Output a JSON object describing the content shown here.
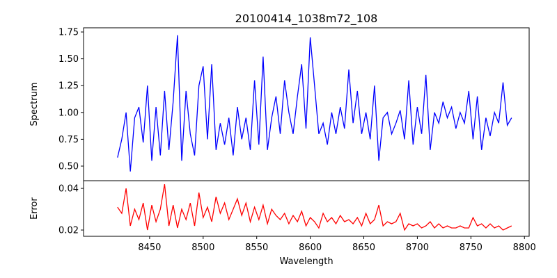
{
  "chart_data": {
    "type": "line",
    "title": "20100414_1038m72_108",
    "xlabel": "Wavelength",
    "xlim": [
      8388.3,
      8804.4
    ],
    "xticks": [
      8450,
      8500,
      8550,
      8600,
      8650,
      8700,
      8750,
      8800
    ],
    "x_start": 8420,
    "x_step": 4,
    "panels": [
      {
        "name": "spectrum",
        "ylabel": "Spectrum",
        "ylim": [
          0.364,
          1.789
        ],
        "yticks": [
          "0.50",
          "0.75",
          "1.00",
          "1.25",
          "1.50",
          "1.75"
        ],
        "color": "#0000ff",
        "values": [
          0.58,
          0.75,
          1.0,
          0.45,
          0.95,
          1.05,
          0.72,
          1.25,
          0.55,
          1.05,
          0.6,
          1.2,
          0.65,
          1.1,
          1.72,
          0.55,
          1.2,
          0.8,
          0.6,
          1.25,
          1.43,
          0.75,
          1.45,
          0.65,
          0.9,
          0.7,
          0.95,
          0.6,
          1.05,
          0.75,
          0.95,
          0.65,
          1.3,
          0.7,
          1.52,
          0.65,
          0.95,
          1.15,
          0.8,
          1.3,
          1.0,
          0.8,
          1.15,
          1.45,
          0.85,
          1.7,
          1.25,
          0.8,
          0.9,
          0.7,
          1.0,
          0.8,
          1.05,
          0.85,
          1.4,
          0.9,
          1.2,
          0.8,
          1.0,
          0.75,
          1.25,
          0.55,
          0.95,
          1.0,
          0.8,
          0.9,
          1.02,
          0.75,
          1.3,
          0.7,
          1.05,
          0.8,
          1.35,
          0.65,
          1.0,
          0.9,
          1.1,
          0.95,
          1.05,
          0.85,
          1.0,
          0.9,
          1.2,
          0.75,
          1.15,
          0.65,
          0.95,
          0.78,
          1.0,
          0.9,
          1.28,
          0.88,
          0.95
        ]
      },
      {
        "name": "error",
        "ylabel": "Error",
        "ylim": [
          0.017,
          0.0437
        ],
        "yticks": [
          "0.02",
          "0.04"
        ],
        "color": "#ff0000",
        "values": [
          0.031,
          0.028,
          0.04,
          0.022,
          0.03,
          0.025,
          0.033,
          0.02,
          0.032,
          0.024,
          0.03,
          0.042,
          0.022,
          0.032,
          0.021,
          0.03,
          0.025,
          0.033,
          0.022,
          0.038,
          0.026,
          0.031,
          0.024,
          0.036,
          0.028,
          0.033,
          0.025,
          0.03,
          0.035,
          0.027,
          0.033,
          0.024,
          0.031,
          0.025,
          0.032,
          0.023,
          0.03,
          0.027,
          0.025,
          0.028,
          0.023,
          0.027,
          0.024,
          0.029,
          0.022,
          0.026,
          0.024,
          0.021,
          0.028,
          0.024,
          0.026,
          0.023,
          0.027,
          0.024,
          0.025,
          0.023,
          0.026,
          0.022,
          0.028,
          0.023,
          0.025,
          0.032,
          0.022,
          0.024,
          0.023,
          0.024,
          0.028,
          0.02,
          0.023,
          0.022,
          0.023,
          0.021,
          0.022,
          0.024,
          0.021,
          0.023,
          0.021,
          0.022,
          0.021,
          0.021,
          0.022,
          0.021,
          0.021,
          0.026,
          0.022,
          0.023,
          0.021,
          0.023,
          0.021,
          0.022,
          0.02,
          0.021,
          0.022
        ]
      }
    ]
  }
}
